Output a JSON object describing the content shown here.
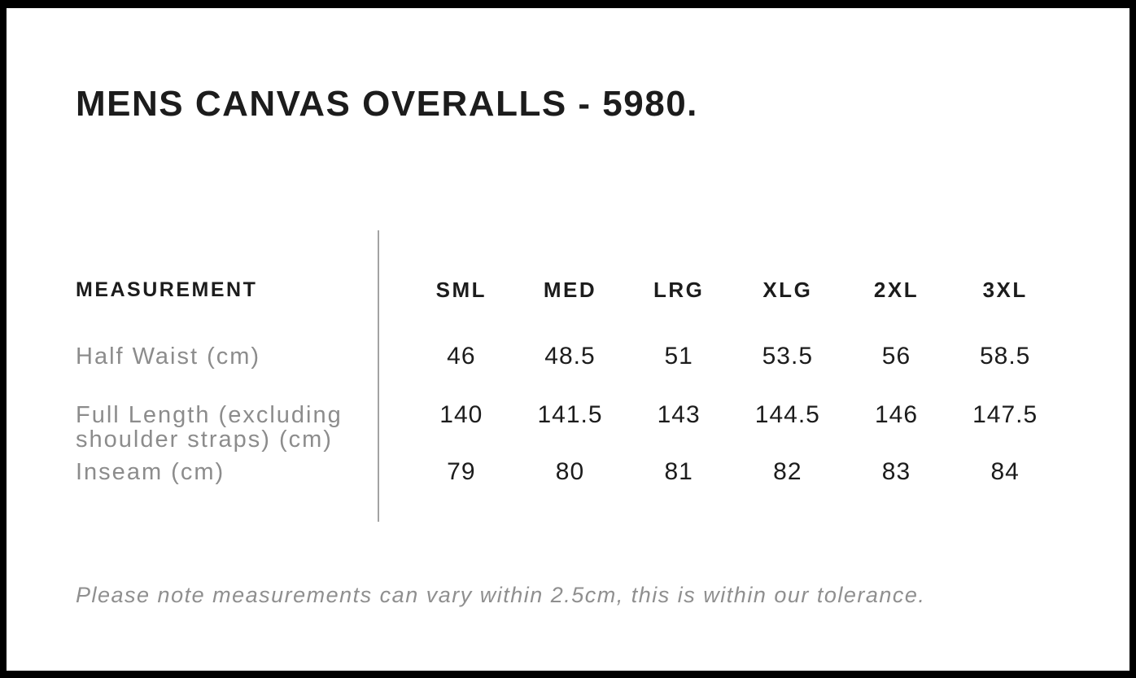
{
  "page": {
    "title": "MENS CANVAS OVERALLS - 5980."
  },
  "table": {
    "measurement_header": "MEASUREMENT",
    "size_headers": [
      "SML",
      "MED",
      "LRG",
      "XLG",
      "2XL",
      "3XL"
    ],
    "rows": [
      {
        "label": "Half Waist (cm)",
        "values": [
          "46",
          "48.5",
          "51",
          "53.5",
          "56",
          "58.5"
        ]
      },
      {
        "label": "Full Length (excluding shoulder straps) (cm)",
        "values": [
          "140",
          "141.5",
          "143",
          "144.5",
          "146",
          "147.5"
        ]
      },
      {
        "label": "Inseam (cm)",
        "values": [
          "79",
          "80",
          "81",
          "82",
          "83",
          "84"
        ]
      }
    ]
  },
  "note": "Please note measurements can vary within 2.5cm, this is within our tolerance.",
  "colors": {
    "frame": "#000000",
    "text": "#1c1c1c",
    "label_gray": "#8c8c8c",
    "divider": "#a3a3a3",
    "note_gray": "#8f8f8f"
  },
  "chart_data": {
    "type": "table",
    "title": "MENS CANVAS OVERALLS - 5980.",
    "columns": [
      "MEASUREMENT",
      "SML",
      "MED",
      "LRG",
      "XLG",
      "2XL",
      "3XL"
    ],
    "rows": [
      [
        "Half Waist (cm)",
        46,
        48.5,
        51,
        53.5,
        56,
        58.5
      ],
      [
        "Full Length (excluding shoulder straps) (cm)",
        140,
        141.5,
        143,
        144.5,
        146,
        147.5
      ],
      [
        "Inseam (cm)",
        79,
        80,
        81,
        82,
        83,
        84
      ]
    ],
    "note": "Please note measurements can vary within 2.5cm, this is within our tolerance."
  }
}
